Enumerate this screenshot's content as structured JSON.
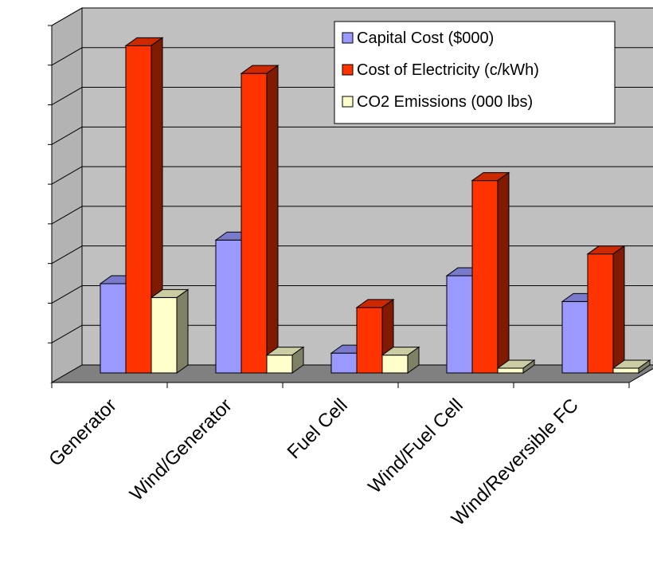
{
  "chart_data": {
    "type": "bar",
    "categories": [
      "Generator",
      "Wind/Generator",
      "Fuel Cell",
      "Wind/Fuel Cell",
      "Wind/Reversible FC"
    ],
    "series": [
      {
        "name": "Capital Cost ($000)",
        "values": [
          2.25,
          3.35,
          0.5,
          2.45,
          1.8
        ],
        "color": "#9999ff"
      },
      {
        "name": "Cost of Electricity (c/kWh)",
        "values": [
          8.25,
          7.55,
          1.65,
          4.85,
          3.0
        ],
        "color": "#ff3300"
      },
      {
        "name": "CO2 Emissions (000 lbs)",
        "values": [
          1.9,
          0.45,
          0.45,
          0.12,
          0.12
        ],
        "color": "#ffffcc"
      }
    ],
    "ylim": [
      0,
      9
    ],
    "y_ticks": 9,
    "grid": true,
    "legend_position": "top-right"
  }
}
